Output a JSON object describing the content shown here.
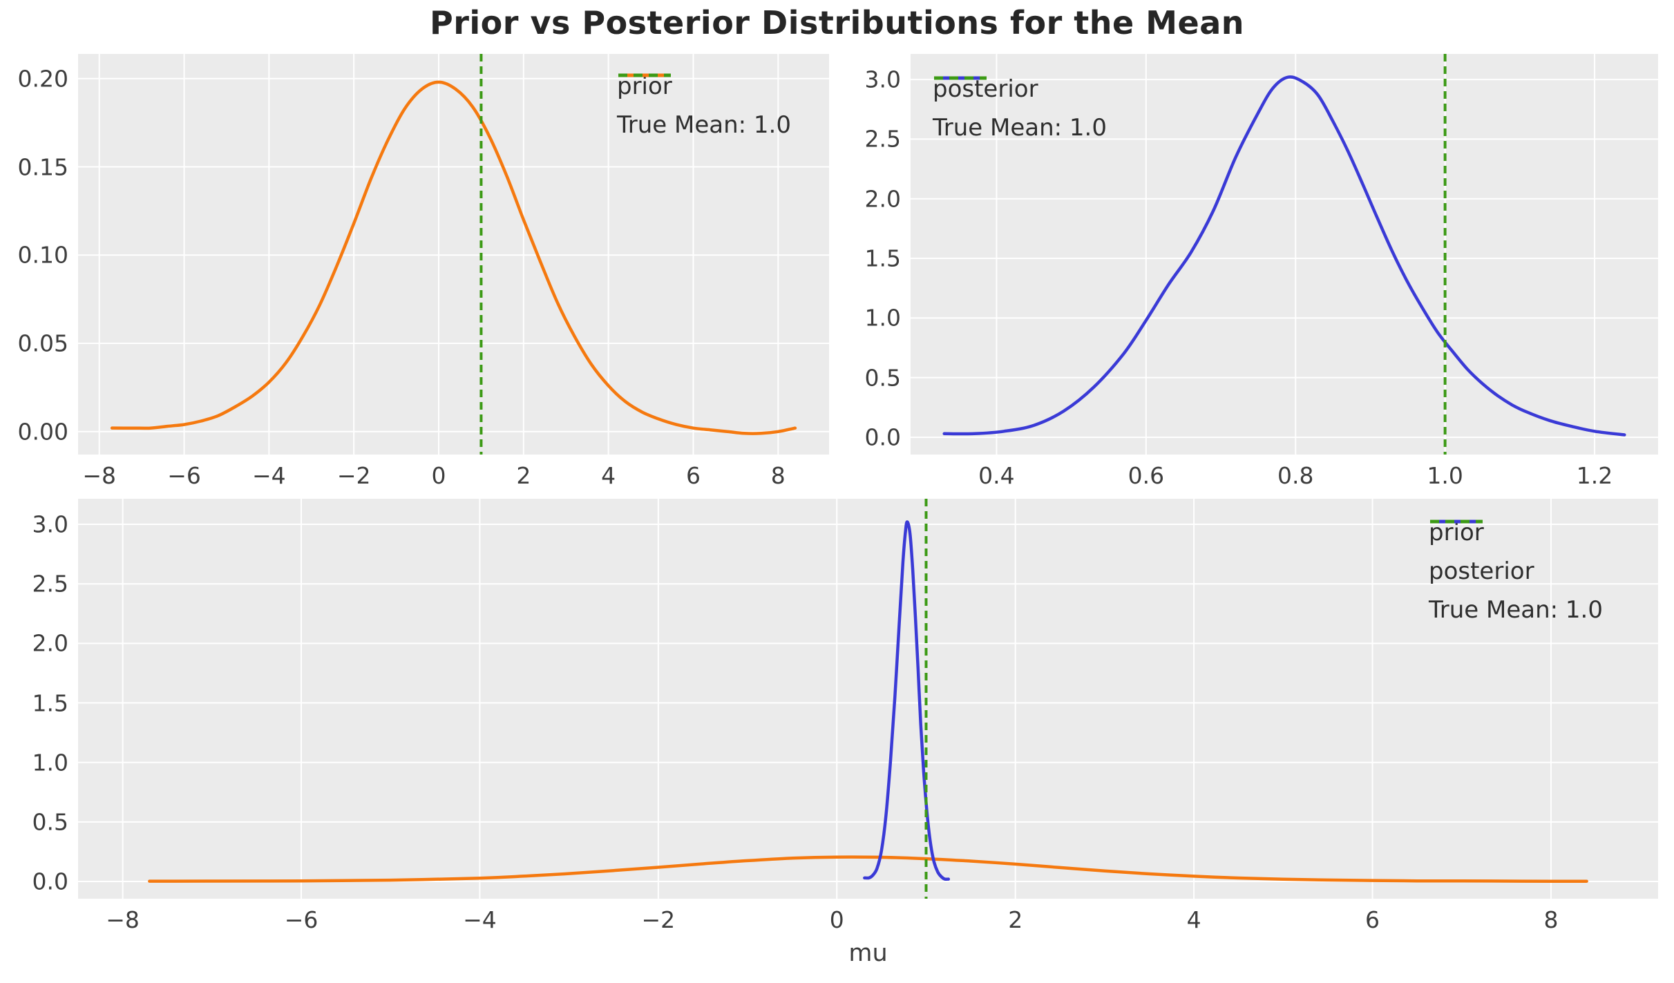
{
  "title": "Prior vs Posterior Distributions for the Mean",
  "colors": {
    "prior": "#f5790f",
    "posterior": "#3a3ad6",
    "true_mean": "#3c9a15",
    "plot_bg": "#ebebeb",
    "grid": "#ffffff",
    "tick_text": "#3d3d3d",
    "title_text": "#262626"
  },
  "chart_data": [
    {
      "id": "top-left",
      "type": "line",
      "xlabel": "",
      "ylabel": "",
      "xlim": [
        -8.5,
        9.2
      ],
      "ylim": [
        -0.013,
        0.214
      ],
      "grid": true,
      "xticks": {
        "values": [
          -8,
          -6,
          -4,
          -2,
          0,
          2,
          4,
          6,
          8
        ],
        "labels": [
          "−8",
          "−6",
          "−4",
          "−2",
          "0",
          "2",
          "4",
          "6",
          "8"
        ]
      },
      "yticks": {
        "values": [
          0.0,
          0.05,
          0.1,
          0.15,
          0.2
        ],
        "labels": [
          "0.00",
          "0.05",
          "0.10",
          "0.15",
          "0.20"
        ]
      },
      "series": [
        {
          "name": "prior",
          "color_key": "prior",
          "style": "solid",
          "points": [
            [
              -7.7,
              0.002
            ],
            [
              -7.2,
              0.002
            ],
            [
              -6.8,
              0.002
            ],
            [
              -6.4,
              0.003
            ],
            [
              -6.0,
              0.004
            ],
            [
              -5.6,
              0.006
            ],
            [
              -5.2,
              0.009
            ],
            [
              -4.8,
              0.014
            ],
            [
              -4.4,
              0.02
            ],
            [
              -4.0,
              0.028
            ],
            [
              -3.6,
              0.039
            ],
            [
              -3.2,
              0.054
            ],
            [
              -2.8,
              0.072
            ],
            [
              -2.4,
              0.094
            ],
            [
              -2.0,
              0.118
            ],
            [
              -1.6,
              0.143
            ],
            [
              -1.2,
              0.165
            ],
            [
              -0.8,
              0.183
            ],
            [
              -0.4,
              0.194
            ],
            [
              0.0,
              0.198
            ],
            [
              0.4,
              0.194
            ],
            [
              0.8,
              0.184
            ],
            [
              1.2,
              0.167
            ],
            [
              1.6,
              0.145
            ],
            [
              2.0,
              0.12
            ],
            [
              2.4,
              0.096
            ],
            [
              2.8,
              0.073
            ],
            [
              3.2,
              0.054
            ],
            [
              3.6,
              0.038
            ],
            [
              4.0,
              0.026
            ],
            [
              4.4,
              0.017
            ],
            [
              4.8,
              0.011
            ],
            [
              5.2,
              0.007
            ],
            [
              5.6,
              0.004
            ],
            [
              6.0,
              0.002
            ],
            [
              6.4,
              0.001
            ],
            [
              6.8,
              0.0
            ],
            [
              7.2,
              -0.001
            ],
            [
              7.6,
              -0.001
            ],
            [
              8.0,
              0.0
            ],
            [
              8.4,
              0.002
            ]
          ]
        }
      ],
      "vline": {
        "x": 1.0,
        "label": "True Mean: 1.0",
        "color_key": "true_mean",
        "style": "dashed"
      },
      "legend": {
        "position": "upper right",
        "entries": [
          {
            "label": "prior",
            "color_key": "prior",
            "style": "solid"
          },
          {
            "label": "True Mean: 1.0",
            "color_key": "true_mean",
            "style": "dashed"
          }
        ]
      }
    },
    {
      "id": "top-right",
      "type": "line",
      "xlabel": "",
      "ylabel": "",
      "xlim": [
        0.285,
        1.285
      ],
      "ylim": [
        -0.145,
        3.215
      ],
      "grid": true,
      "xticks": {
        "values": [
          0.4,
          0.6,
          0.8,
          1.0,
          1.2
        ],
        "labels": [
          "0.4",
          "0.6",
          "0.8",
          "1.0",
          "1.2"
        ]
      },
      "yticks": {
        "values": [
          0.0,
          0.5,
          1.0,
          1.5,
          2.0,
          2.5,
          3.0
        ],
        "labels": [
          "0.0",
          "0.5",
          "1.0",
          "1.5",
          "2.0",
          "2.5",
          "3.0"
        ]
      },
      "series": [
        {
          "name": "posterior",
          "color_key": "posterior",
          "style": "solid",
          "points": [
            [
              0.33,
              0.03
            ],
            [
              0.37,
              0.03
            ],
            [
              0.41,
              0.05
            ],
            [
              0.45,
              0.1
            ],
            [
              0.49,
              0.22
            ],
            [
              0.53,
              0.42
            ],
            [
              0.57,
              0.7
            ],
            [
              0.6,
              0.98
            ],
            [
              0.63,
              1.28
            ],
            [
              0.66,
              1.55
            ],
            [
              0.69,
              1.9
            ],
            [
              0.72,
              2.35
            ],
            [
              0.75,
              2.72
            ],
            [
              0.77,
              2.93
            ],
            [
              0.79,
              3.02
            ],
            [
              0.81,
              2.98
            ],
            [
              0.83,
              2.87
            ],
            [
              0.85,
              2.65
            ],
            [
              0.87,
              2.4
            ],
            [
              0.89,
              2.12
            ],
            [
              0.91,
              1.83
            ],
            [
              0.93,
              1.55
            ],
            [
              0.95,
              1.3
            ],
            [
              0.97,
              1.08
            ],
            [
              0.99,
              0.88
            ],
            [
              1.01,
              0.72
            ],
            [
              1.03,
              0.57
            ],
            [
              1.05,
              0.45
            ],
            [
              1.07,
              0.35
            ],
            [
              1.09,
              0.27
            ],
            [
              1.11,
              0.21
            ],
            [
              1.14,
              0.14
            ],
            [
              1.17,
              0.09
            ],
            [
              1.2,
              0.05
            ],
            [
              1.24,
              0.02
            ]
          ]
        }
      ],
      "vline": {
        "x": 1.0,
        "label": "True Mean: 1.0",
        "color_key": "true_mean",
        "style": "dashed"
      },
      "legend": {
        "position": "upper left",
        "entries": [
          {
            "label": "posterior",
            "color_key": "posterior",
            "style": "solid"
          },
          {
            "label": "True Mean: 1.0",
            "color_key": "true_mean",
            "style": "dashed"
          }
        ]
      }
    },
    {
      "id": "bottom",
      "type": "line",
      "xlabel": "mu",
      "ylabel": "",
      "xlim": [
        -8.5,
        9.2
      ],
      "ylim": [
        -0.145,
        3.215
      ],
      "grid": true,
      "xticks": {
        "values": [
          -8,
          -6,
          -4,
          -2,
          0,
          2,
          4,
          6,
          8
        ],
        "labels": [
          "−8",
          "−6",
          "−4",
          "−2",
          "0",
          "2",
          "4",
          "6",
          "8"
        ]
      },
      "yticks": {
        "values": [
          0.0,
          0.5,
          1.0,
          1.5,
          2.0,
          2.5,
          3.0
        ],
        "labels": [
          "0.0",
          "0.5",
          "1.0",
          "1.5",
          "2.0",
          "2.5",
          "3.0"
        ]
      },
      "series": [
        {
          "name": "prior",
          "color_key": "prior",
          "style": "solid",
          "points": [
            [
              -7.7,
              0.002
            ],
            [
              -7.0,
              0.003
            ],
            [
              -6.0,
              0.005
            ],
            [
              -5.0,
              0.011
            ],
            [
              -4.0,
              0.028
            ],
            [
              -3.5,
              0.045
            ],
            [
              -3.0,
              0.066
            ],
            [
              -2.5,
              0.092
            ],
            [
              -2.0,
              0.119
            ],
            [
              -1.5,
              0.148
            ],
            [
              -1.0,
              0.175
            ],
            [
              -0.5,
              0.196
            ],
            [
              0.0,
              0.205
            ],
            [
              0.5,
              0.203
            ],
            [
              1.0,
              0.191
            ],
            [
              1.5,
              0.171
            ],
            [
              2.0,
              0.146
            ],
            [
              2.5,
              0.117
            ],
            [
              3.0,
              0.089
            ],
            [
              3.5,
              0.064
            ],
            [
              4.0,
              0.044
            ],
            [
              4.5,
              0.029
            ],
            [
              5.0,
              0.019
            ],
            [
              5.5,
              0.012
            ],
            [
              6.0,
              0.008
            ],
            [
              6.5,
              0.005
            ],
            [
              7.0,
              0.004
            ],
            [
              7.5,
              0.003
            ],
            [
              8.0,
              0.002
            ],
            [
              8.4,
              0.002
            ]
          ]
        },
        {
          "name": "posterior",
          "color_key": "posterior",
          "style": "solid",
          "points": [
            [
              0.31,
              0.03
            ],
            [
              0.36,
              0.03
            ],
            [
              0.4,
              0.05
            ],
            [
              0.45,
              0.11
            ],
            [
              0.5,
              0.26
            ],
            [
              0.55,
              0.55
            ],
            [
              0.6,
              1.0
            ],
            [
              0.65,
              1.55
            ],
            [
              0.7,
              2.18
            ],
            [
              0.74,
              2.68
            ],
            [
              0.77,
              2.95
            ],
            [
              0.79,
              3.02
            ],
            [
              0.82,
              2.92
            ],
            [
              0.85,
              2.62
            ],
            [
              0.88,
              2.22
            ],
            [
              0.91,
              1.78
            ],
            [
              0.94,
              1.32
            ],
            [
              0.97,
              0.95
            ],
            [
              1.0,
              0.66
            ],
            [
              1.03,
              0.43
            ],
            [
              1.06,
              0.27
            ],
            [
              1.09,
              0.16
            ],
            [
              1.13,
              0.08
            ],
            [
              1.17,
              0.04
            ],
            [
              1.21,
              0.02
            ],
            [
              1.25,
              0.02
            ]
          ]
        }
      ],
      "vline": {
        "x": 1.0,
        "label": "True Mean: 1.0",
        "color_key": "true_mean",
        "style": "dashed"
      },
      "legend": {
        "position": "upper right",
        "entries": [
          {
            "label": "prior",
            "color_key": "prior",
            "style": "solid"
          },
          {
            "label": "posterior",
            "color_key": "posterior",
            "style": "solid"
          },
          {
            "label": "True Mean: 1.0",
            "color_key": "true_mean",
            "style": "dashed"
          }
        ]
      }
    }
  ]
}
